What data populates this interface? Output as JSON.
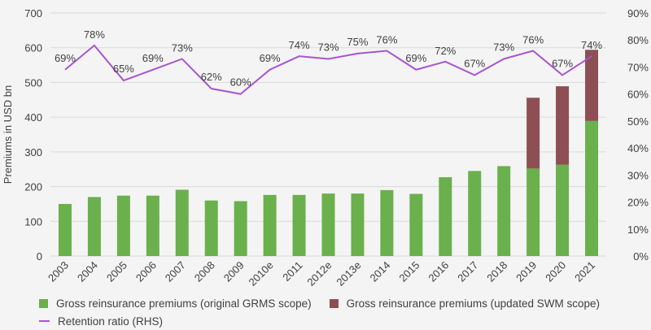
{
  "chart_data": {
    "type": "bar",
    "stacked": true,
    "title": "",
    "xlabel": "",
    "ylabel": "Premiums in USD bn",
    "y2label": "",
    "ylim": [
      0,
      700
    ],
    "yticks": [
      "0",
      "100",
      "200",
      "300",
      "400",
      "500",
      "600",
      "700"
    ],
    "y2lim": [
      0,
      90
    ],
    "y2ticks": [
      "0%",
      "10%",
      "20%",
      "30%",
      "40%",
      "50%",
      "60%",
      "70%",
      "80%",
      "90%"
    ],
    "grid": true,
    "legend_position": "bottom",
    "categories": [
      "2003",
      "2004",
      "2005",
      "2006",
      "2007",
      "2008",
      "2009",
      "2010e",
      "2011",
      "2012e",
      "2013e",
      "2014",
      "2015",
      "2016",
      "2017",
      "2018",
      "2019",
      "2020",
      "2021"
    ],
    "series": [
      {
        "name": "Gross reinsurance premiums (original GRMS scope)",
        "kind": "bar",
        "color": "#6ab04c",
        "values": [
          150,
          170,
          174,
          174,
          191,
          160,
          158,
          176,
          176,
          180,
          180,
          190,
          179,
          227,
          245,
          259,
          252,
          263,
          389
        ]
      },
      {
        "name": "Gross reinsurance premiums (updated SWM scope)",
        "kind": "bar",
        "color": "#8e4f54",
        "values": [
          0,
          0,
          0,
          0,
          0,
          0,
          0,
          0,
          0,
          0,
          0,
          0,
          0,
          0,
          0,
          0,
          204,
          226,
          205
        ]
      },
      {
        "name": "Retention ratio (RHS)",
        "kind": "line",
        "axis": "right",
        "color": "#a855d0",
        "values": [
          69,
          78,
          65,
          69,
          73,
          62,
          60,
          69,
          74,
          73,
          75,
          76,
          69,
          72,
          67,
          73,
          76,
          67,
          74
        ],
        "labels": [
          "69%",
          "78%",
          "65%",
          "69%",
          "73%",
          "62%",
          "60%",
          "69%",
          "74%",
          "73%",
          "75%",
          "76%",
          "69%",
          "72%",
          "67%",
          "73%",
          "76%",
          "67%",
          "74%"
        ]
      }
    ]
  }
}
